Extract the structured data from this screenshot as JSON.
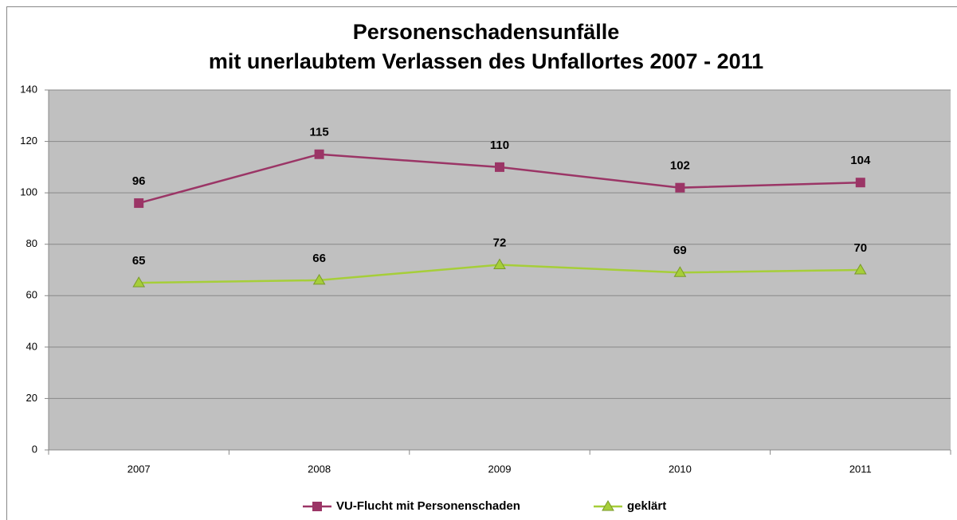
{
  "chart_data": {
    "type": "line",
    "title": [
      "Personenschadensunfälle",
      "mit unerlaubtem Verlassen des Unfallortes 2007 - 2011"
    ],
    "categories": [
      "2007",
      "2008",
      "2009",
      "2010",
      "2011"
    ],
    "series": [
      {
        "name": "VU-Flucht mit Personenschaden",
        "color": "#9b3566",
        "marker": "square",
        "values": [
          96,
          115,
          110,
          102,
          104
        ]
      },
      {
        "name": "geklärt",
        "color": "#a6ce39",
        "marker": "triangle",
        "values": [
          65,
          66,
          72,
          69,
          70
        ]
      }
    ],
    "ylim": [
      0,
      140
    ],
    "yticks": [
      0,
      20,
      40,
      60,
      80,
      100,
      120,
      140
    ],
    "grid": true,
    "legend": "bottom"
  }
}
